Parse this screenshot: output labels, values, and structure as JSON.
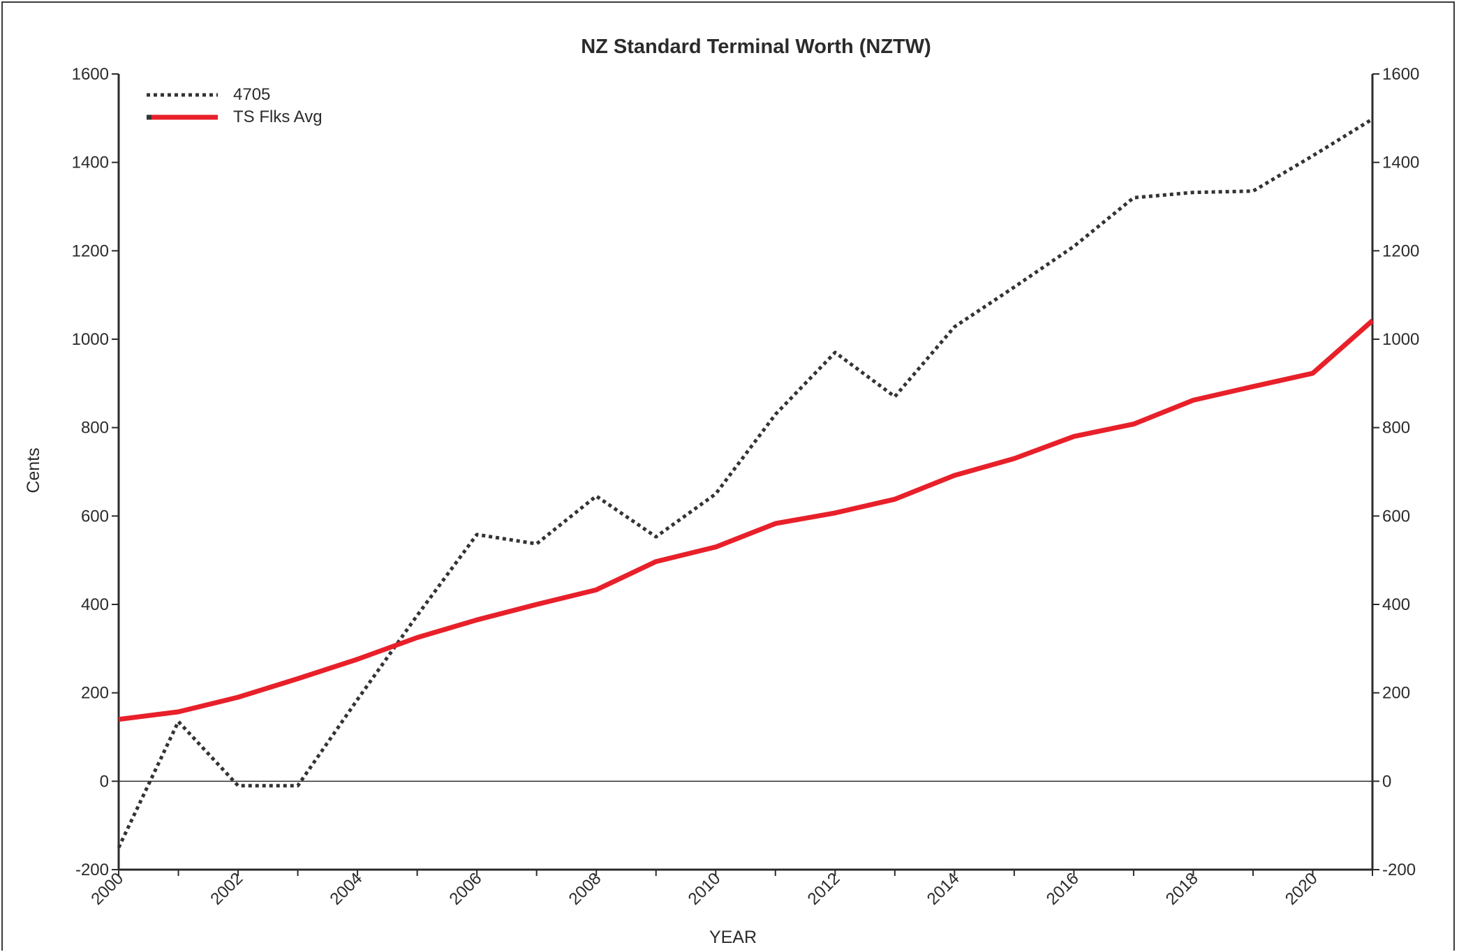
{
  "chart_data": {
    "type": "line",
    "title": "NZ Standard Terminal Worth (NZTW)",
    "xlabel": "YEAR",
    "ylabel": "Cents",
    "xlim": [
      2000,
      2021
    ],
    "ylim": [
      -200,
      1600
    ],
    "y_ticks": [
      -200,
      0,
      200,
      400,
      600,
      800,
      1000,
      1200,
      1400,
      1600
    ],
    "x_tick_labels": [
      "2000",
      "2002",
      "2004",
      "2006",
      "2008",
      "2010",
      "2012",
      "2014",
      "2016",
      "2018",
      "2020"
    ],
    "x_minor_ticks_every": 1,
    "secondary_y_axis": true,
    "zero_line": true,
    "grid": false,
    "legend_position": "top-left",
    "x": [
      2000,
      2001,
      2002,
      2003,
      2004,
      2005,
      2006,
      2007,
      2008,
      2009,
      2010,
      2011,
      2012,
      2013,
      2014,
      2015,
      2016,
      2017,
      2018,
      2019,
      2020,
      2021
    ],
    "series": [
      {
        "name": "4705",
        "style": "dotted",
        "color": "#333333",
        "values": [
          -150,
          135,
          -10,
          -10,
          185,
          375,
          558,
          537,
          645,
          553,
          650,
          830,
          970,
          870,
          1028,
          1118,
          1210,
          1320,
          1332,
          1335,
          1415,
          1498
        ]
      },
      {
        "name": "TS Flks Avg",
        "style": "solid",
        "color": "#e8202a",
        "values": [
          140,
          157,
          190,
          232,
          276,
          325,
          365,
          400,
          433,
          497,
          530,
          583,
          607,
          638,
          692,
          730,
          780,
          808,
          862,
          893,
          923,
          1042
        ]
      }
    ]
  }
}
